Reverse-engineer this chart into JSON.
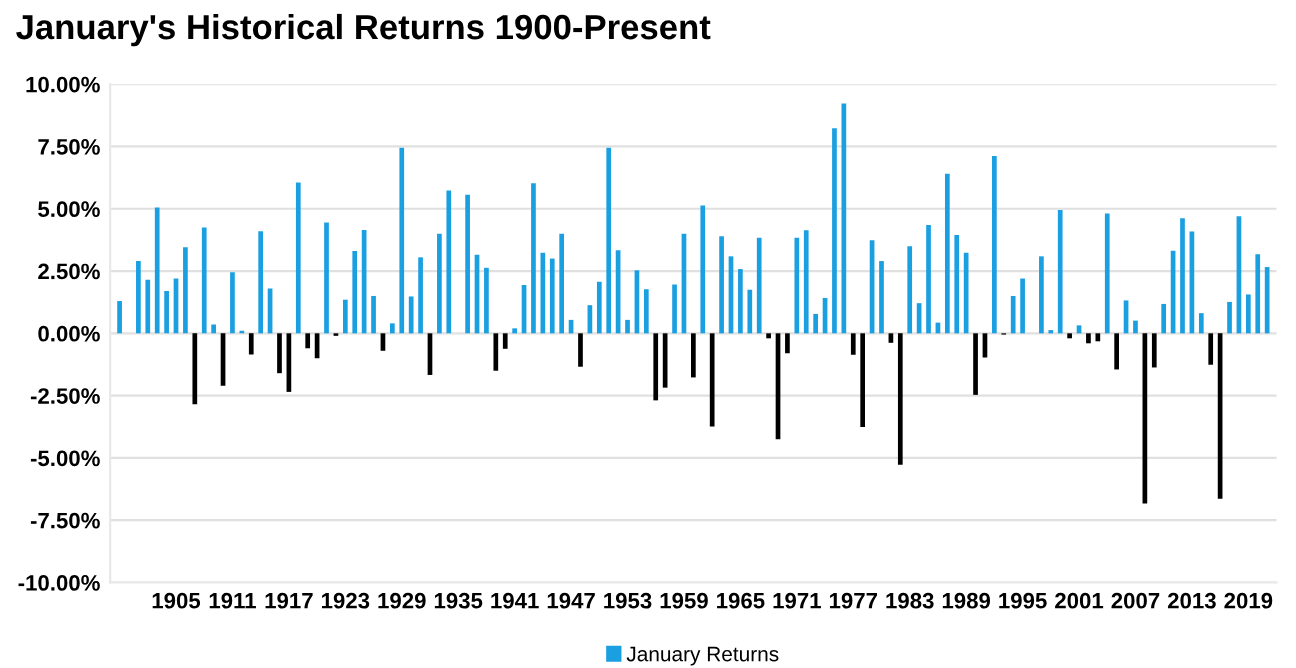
{
  "chart_data": {
    "type": "bar",
    "title": "January's Historical Returns 1900-Present",
    "categories": [
      null,
      null,
      null,
      null,
      null,
      null,
      "1905",
      null,
      null,
      null,
      null,
      null,
      "1911",
      null,
      null,
      null,
      null,
      null,
      "1917",
      null,
      null,
      null,
      null,
      null,
      "1923",
      null,
      null,
      null,
      null,
      null,
      "1929",
      null,
      null,
      null,
      null,
      null,
      "1935",
      null,
      null,
      null,
      null,
      null,
      "1941",
      null,
      null,
      null,
      null,
      null,
      "1947",
      null,
      null,
      null,
      null,
      null,
      "1953",
      null,
      null,
      null,
      null,
      null,
      "1959",
      null,
      null,
      null,
      null,
      null,
      "1965",
      null,
      null,
      null,
      null,
      null,
      "1971",
      null,
      null,
      null,
      null,
      null,
      "1977",
      null,
      null,
      null,
      null,
      null,
      "1983",
      null,
      null,
      null,
      null,
      null,
      "1989",
      null,
      null,
      null,
      null,
      null,
      "1995",
      null,
      null,
      null,
      null,
      null,
      "2001",
      null,
      null,
      null,
      null,
      null,
      "2007",
      null,
      null,
      null,
      null,
      null,
      "2013",
      null,
      null,
      null,
      null,
      null,
      "2019",
      null,
      null
    ],
    "series": [
      {
        "name": "January Returns",
        "color": "#1a9fe0",
        "values": [
          1.3,
          0,
          2.9,
          2.15,
          5.05,
          1.7,
          2.2,
          3.45,
          -2.85,
          4.25,
          0.35,
          -2.1,
          2.45,
          0.1,
          -0.85,
          4.1,
          1.8,
          -1.6,
          -2.35,
          6.05,
          -0.6,
          -1.0,
          4.45,
          -0.1,
          1.35,
          3.3,
          4.15,
          1.5,
          -0.7,
          0.4,
          7.45,
          1.48,
          3.05,
          -1.67,
          4.0,
          5.73,
          0,
          5.56,
          3.15,
          2.63,
          -1.5,
          -0.62,
          0.2,
          1.94,
          6.02,
          3.23,
          3.0,
          4.0,
          0.54,
          -1.34,
          1.13,
          2.07,
          7.45,
          3.33,
          0.54,
          2.53,
          1.77,
          -2.69,
          -2.18,
          1.96,
          4.0,
          -1.77,
          5.13,
          -3.74,
          3.9,
          3.09,
          2.58,
          1.75,
          3.84,
          -0.2,
          -4.25,
          -0.8,
          3.84,
          4.14,
          0.78,
          1.42,
          8.23,
          9.22,
          -0.86,
          -3.76,
          3.74,
          2.9,
          -0.38,
          -5.27,
          3.49,
          1.21,
          4.35,
          0.43,
          6.4,
          3.95,
          3.23,
          -2.47,
          -0.97,
          7.12,
          -0.05,
          1.5,
          2.2,
          0,
          3.09,
          0.13,
          4.95,
          -0.2,
          0.32,
          -0.4,
          -0.32,
          4.81,
          -1.45,
          1.32,
          0.51,
          -6.83,
          -1.37,
          1.18,
          3.31,
          4.62,
          4.09,
          0.81,
          -1.26,
          -6.64,
          1.26,
          4.7,
          1.56,
          3.17,
          2.66
        ],
        "colors": [
          "#1a9fe0",
          "#1a9fe0",
          "#1a9fe0",
          "#1a9fe0",
          "#1a9fe0",
          "#1a9fe0",
          "#1a9fe0",
          "#1a9fe0",
          "#000000",
          "#1a9fe0",
          "#1a9fe0",
          "#000000",
          "#1a9fe0",
          "#1a9fe0",
          "#000000",
          "#1a9fe0",
          "#1a9fe0",
          "#000000",
          "#000000",
          "#1a9fe0",
          "#000000",
          "#000000",
          "#1a9fe0",
          "#000000",
          "#1a9fe0",
          "#1a9fe0",
          "#1a9fe0",
          "#1a9fe0",
          "#000000",
          "#1a9fe0",
          "#1a9fe0",
          "#1a9fe0",
          "#1a9fe0",
          "#000000",
          "#1a9fe0",
          "#1a9fe0",
          "#1a9fe0",
          "#1a9fe0",
          "#1a9fe0",
          "#1a9fe0",
          "#000000",
          "#000000",
          "#1a9fe0",
          "#1a9fe0",
          "#1a9fe0",
          "#1a9fe0",
          "#1a9fe0",
          "#1a9fe0",
          "#1a9fe0",
          "#000000",
          "#1a9fe0",
          "#1a9fe0",
          "#1a9fe0",
          "#1a9fe0",
          "#1a9fe0",
          "#1a9fe0",
          "#1a9fe0",
          "#000000",
          "#000000",
          "#1a9fe0",
          "#1a9fe0",
          "#000000",
          "#1a9fe0",
          "#000000",
          "#1a9fe0",
          "#1a9fe0",
          "#1a9fe0",
          "#1a9fe0",
          "#1a9fe0",
          "#000000",
          "#000000",
          "#000000",
          "#1a9fe0",
          "#1a9fe0",
          "#1a9fe0",
          "#1a9fe0",
          "#1a9fe0",
          "#1a9fe0",
          "#000000",
          "#000000",
          "#1a9fe0",
          "#1a9fe0",
          "#000000",
          "#000000",
          "#1a9fe0",
          "#1a9fe0",
          "#1a9fe0",
          "#1a9fe0",
          "#1a9fe0",
          "#1a9fe0",
          "#1a9fe0",
          "#000000",
          "#000000",
          "#1a9fe0",
          "#000000",
          "#1a9fe0",
          "#1a9fe0",
          "#1a9fe0",
          "#1a9fe0",
          "#1a9fe0",
          "#1a9fe0",
          "#000000",
          "#1a9fe0",
          "#000000",
          "#000000",
          "#1a9fe0",
          "#000000",
          "#1a9fe0",
          "#1a9fe0",
          "#000000",
          "#000000",
          "#1a9fe0",
          "#1a9fe0",
          "#1a9fe0",
          "#1a9fe0",
          "#1a9fe0",
          "#000000",
          "#000000",
          "#1a9fe0",
          "#1a9fe0",
          "#1a9fe0",
          "#1a9fe0",
          "#1a9fe0"
        ]
      }
    ],
    "ylim": [
      -10,
      10
    ],
    "yticks": [
      {
        "value": -10,
        "label": "-10.00%"
      },
      {
        "value": -7.5,
        "label": "-7.50%"
      },
      {
        "value": -5,
        "label": "-5.00%"
      },
      {
        "value": -2.5,
        "label": "-2.50%"
      },
      {
        "value": 0,
        "label": "0.00%"
      },
      {
        "value": 2.5,
        "label": "2.50%"
      },
      {
        "value": 5,
        "label": "5.00%"
      },
      {
        "value": 7.5,
        "label": "7.50%"
      },
      {
        "value": 10,
        "label": "10.00%"
      }
    ],
    "grid": "y",
    "legend": "bottom"
  }
}
